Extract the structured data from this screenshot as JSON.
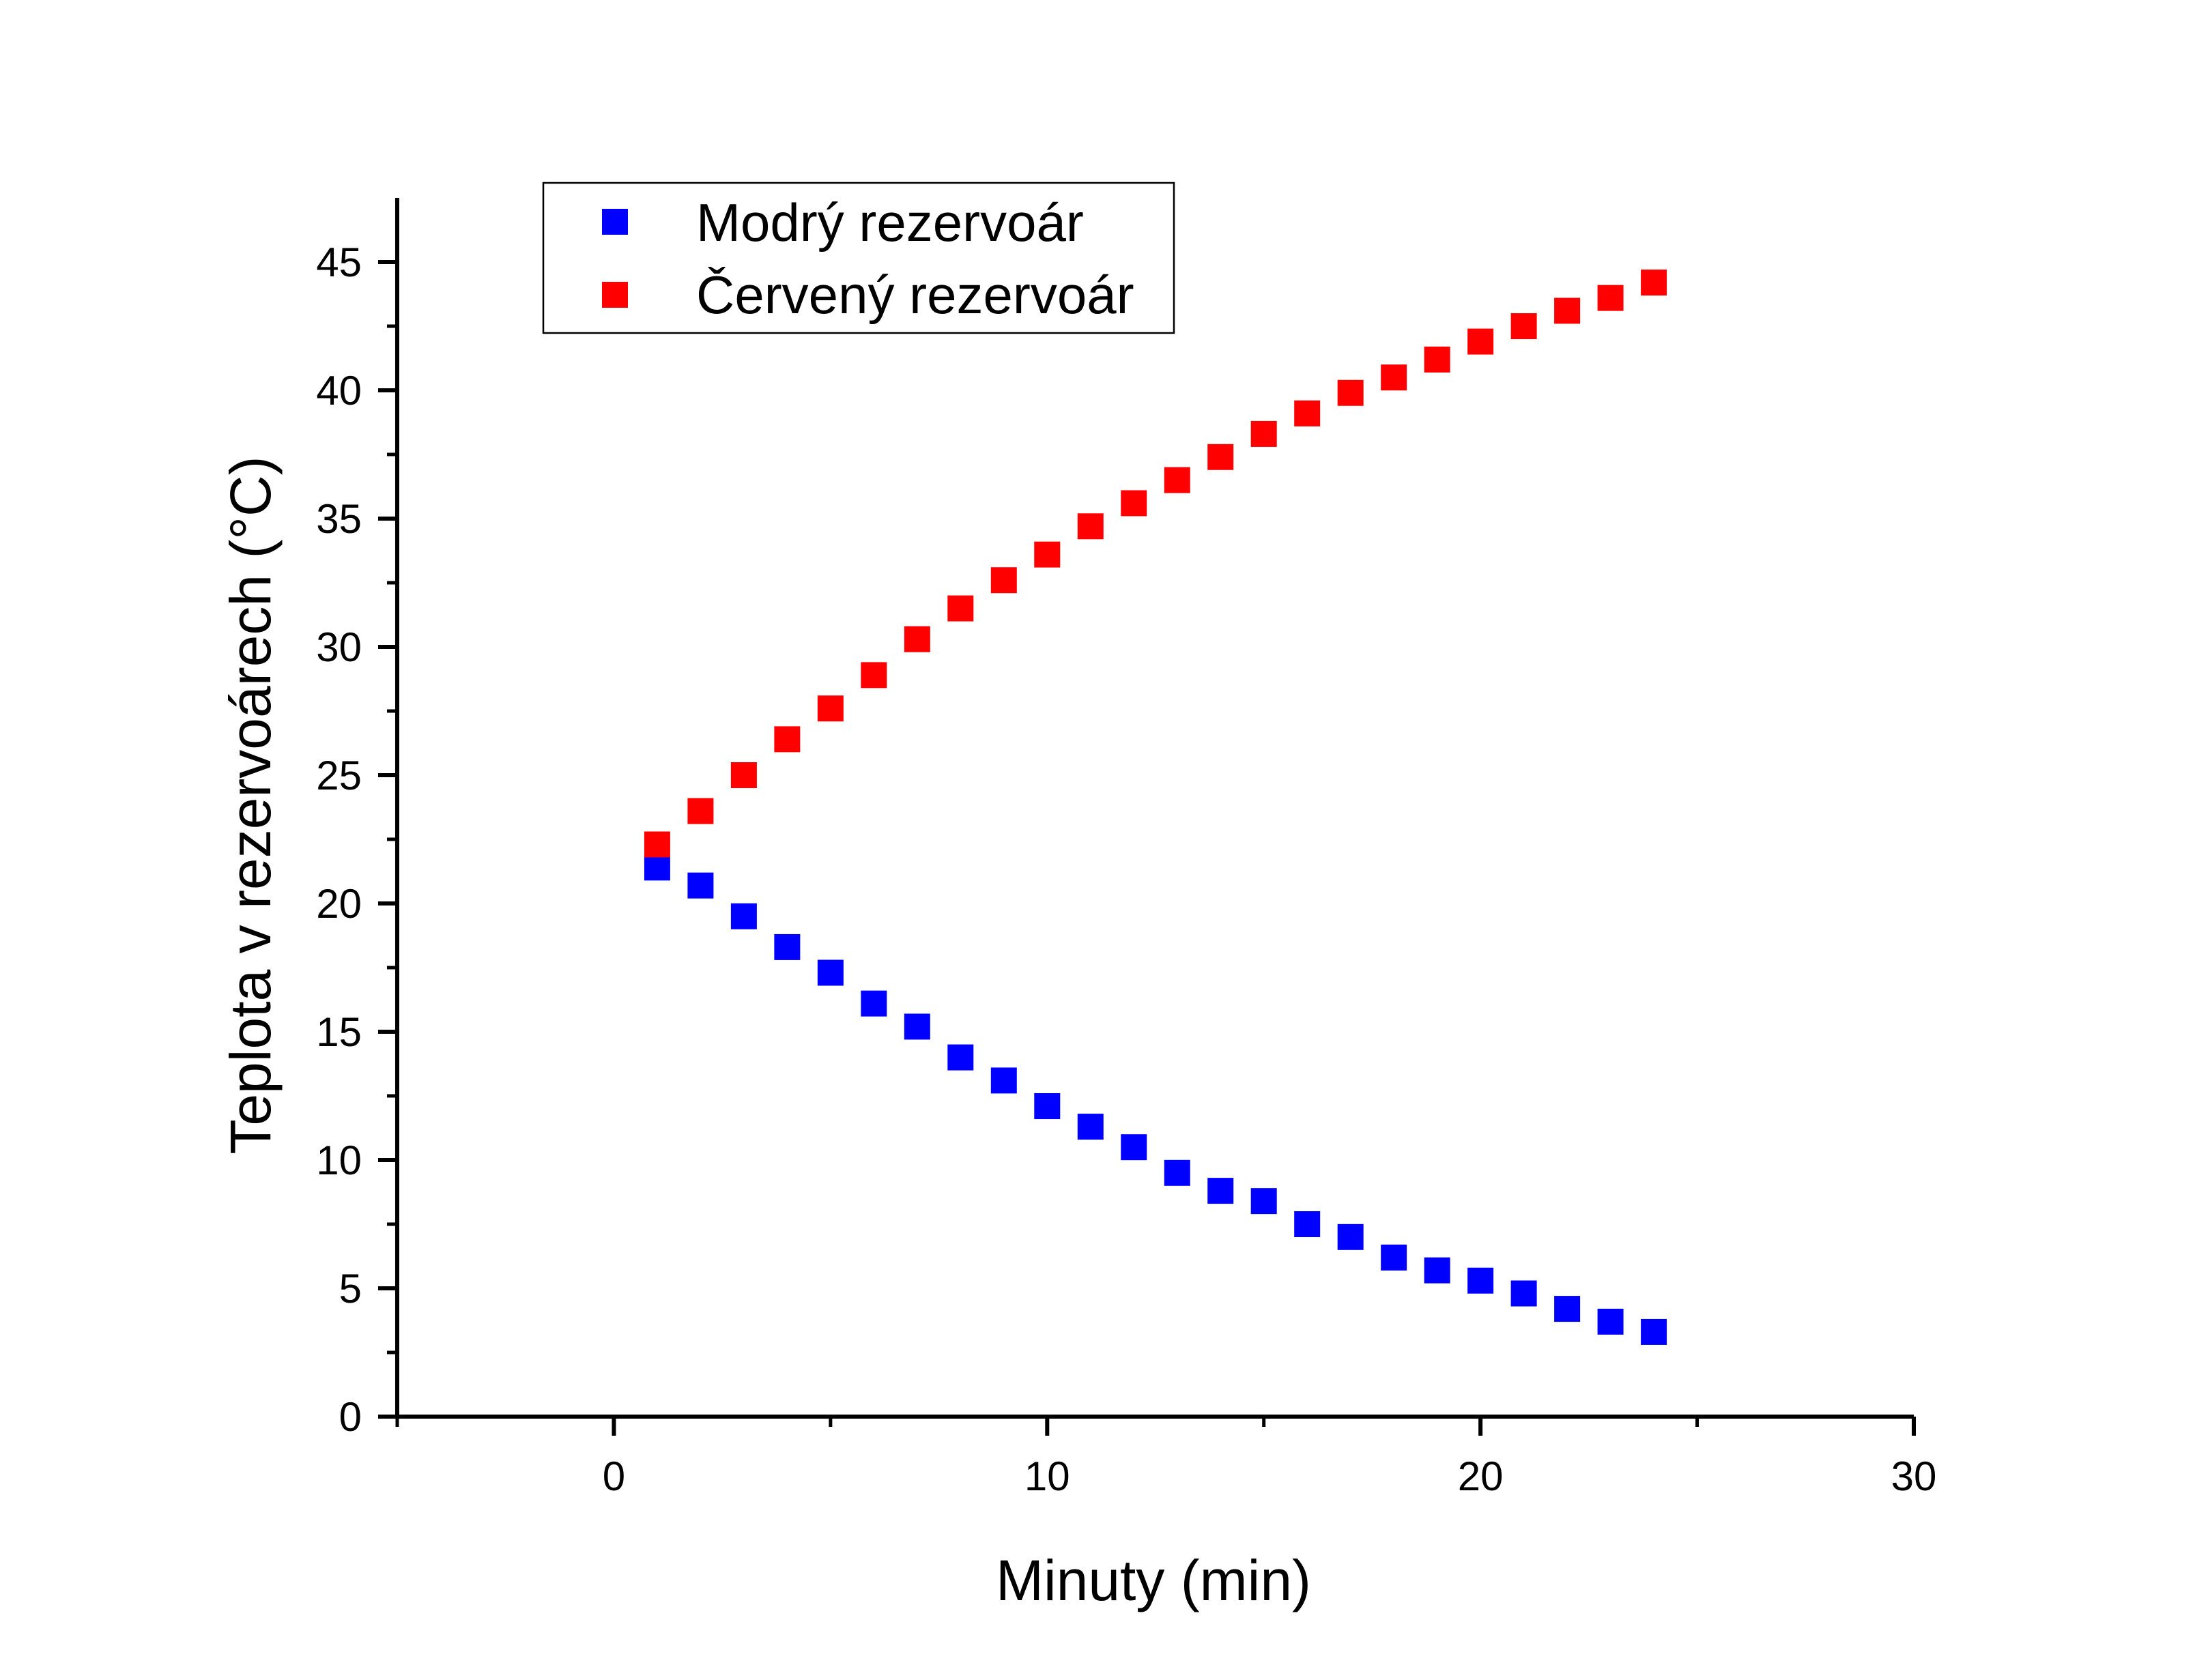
{
  "chart_data": {
    "type": "scatter",
    "title": "",
    "xlabel": "Minuty (min)",
    "ylabel": "Teplota v rezervoárech (°C)",
    "xlim": [
      -5,
      30
    ],
    "ylim": [
      0,
      47.5
    ],
    "x_ticks": [
      0,
      10,
      20,
      30
    ],
    "y_ticks": [
      0,
      5,
      10,
      15,
      20,
      25,
      30,
      35,
      40,
      45
    ],
    "x_tick_labels": [
      "0",
      "10",
      "20",
      "30"
    ],
    "y_tick_labels": [
      "0",
      "5",
      "10",
      "15",
      "20",
      "25",
      "30",
      "35",
      "40",
      "45"
    ],
    "grid": false,
    "legend_position": "top-left",
    "series": [
      {
        "name": "Modrý rezervoár",
        "color": "#0000ff",
        "marker": "square",
        "x": [
          1,
          2,
          3,
          4,
          5,
          6,
          7,
          8,
          9,
          10,
          11,
          12,
          13,
          14,
          15,
          16,
          17,
          18,
          19,
          20,
          21,
          22,
          23,
          24
        ],
        "y": [
          21.4,
          20.7,
          19.5,
          18.3,
          17.3,
          16.1,
          15.2,
          14.0,
          13.1,
          12.1,
          11.3,
          10.5,
          9.5,
          8.8,
          8.4,
          7.5,
          7.0,
          6.2,
          5.7,
          5.3,
          4.8,
          4.2,
          3.7,
          3.3
        ]
      },
      {
        "name": "Červený rezervoár",
        "color": "#ff0000",
        "marker": "square",
        "x": [
          1,
          2,
          3,
          4,
          5,
          6,
          7,
          8,
          9,
          10,
          11,
          12,
          13,
          14,
          15,
          16,
          17,
          18,
          19,
          20,
          21,
          22,
          23,
          24
        ],
        "y": [
          22.3,
          23.6,
          25.0,
          26.4,
          27.6,
          28.9,
          30.3,
          31.5,
          32.6,
          33.6,
          34.7,
          35.6,
          36.5,
          37.4,
          38.3,
          39.1,
          39.9,
          40.5,
          41.2,
          41.9,
          42.5,
          43.1,
          43.6,
          44.2
        ]
      }
    ]
  }
}
